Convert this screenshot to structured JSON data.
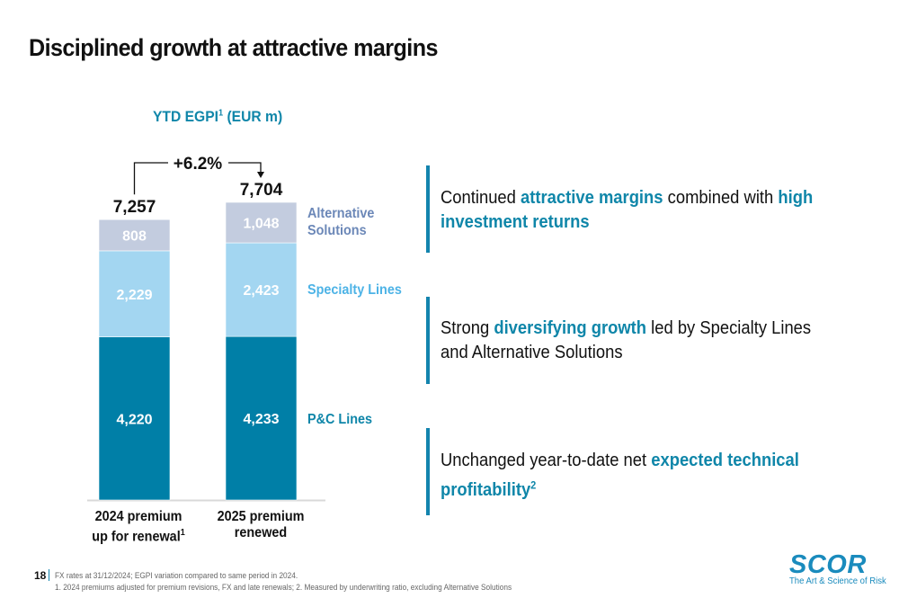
{
  "slide": {
    "title": "Disciplined growth at attractive margins",
    "page_number": "18"
  },
  "chart_data": {
    "type": "bar",
    "stacked": true,
    "title": "YTD EGPI",
    "title_superscript": "1",
    "title_suffix": " (EUR m)",
    "categories": [
      "2024 premium up for renewal",
      "2025 premium renewed"
    ],
    "category_lines": [
      [
        "2024 premium",
        "up for renewal"
      ],
      [
        "2025 premium",
        "renewed"
      ]
    ],
    "category_superscripts": [
      "1",
      ""
    ],
    "series": [
      {
        "name": "P&C Lines",
        "values": [
          4220,
          4233
        ],
        "labels": [
          "4,220",
          "4,233"
        ],
        "color": "#007fa7",
        "label_color": "#0f86a9"
      },
      {
        "name": "Specialty Lines",
        "values": [
          2229,
          2423
        ],
        "labels": [
          "2,229",
          "2,423"
        ],
        "color": "#a3d6f1",
        "label_color": "#4db3e6"
      },
      {
        "name": "Alternative Solutions",
        "values": [
          808,
          1048
        ],
        "labels": [
          "808",
          "1,048"
        ],
        "color": "#c3ccdf",
        "label_color": "#6c88b8",
        "legend_lines": [
          "Alternative",
          "Solutions"
        ]
      }
    ],
    "totals": [
      7257,
      7704
    ],
    "total_labels": [
      "7,257",
      "7,704"
    ],
    "growth_annotation": "+6.2%",
    "xlabel": "",
    "ylabel": "",
    "ylim": [
      0,
      8500
    ],
    "grid": false,
    "legend": "right-inline"
  },
  "callouts": [
    {
      "parts": [
        {
          "text": "Continued ",
          "hl": false
        },
        {
          "text": "attractive margins",
          "hl": true
        },
        {
          "text": " combined with ",
          "hl": false
        },
        {
          "text": "high investment returns",
          "hl": true
        }
      ]
    },
    {
      "parts": [
        {
          "text": "Strong ",
          "hl": false
        },
        {
          "text": "diversifying growth",
          "hl": true
        },
        {
          "text": " led by Specialty Lines and Alternative Solutions",
          "hl": false
        }
      ]
    },
    {
      "parts": [
        {
          "text": "Unchanged year-to-date net ",
          "hl": false
        },
        {
          "text": "expected technical profitability",
          "hl": true,
          "sup": "2"
        }
      ]
    }
  ],
  "footer": {
    "note_line1": "FX rates at 31/12/2024; EGPI variation compared to same period in 2024.",
    "note_line2": "1. 2024 premiums adjusted for premium revisions, FX and late renewals; 2. Measured by underwriting ratio, excluding Alternative Solutions"
  },
  "logo": {
    "word": "SCOR",
    "tagline": "The Art & Science of Risk"
  },
  "colors": {
    "accent": "#0f86a9",
    "callout_bar": "#1384ae"
  }
}
